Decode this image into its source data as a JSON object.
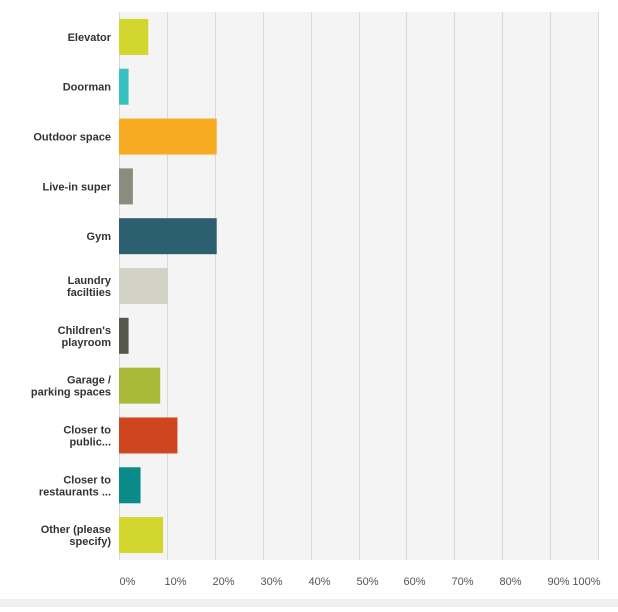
{
  "chart_data": {
    "type": "bar",
    "orientation": "horizontal",
    "categories": [
      [
        "Elevator"
      ],
      [
        "Doorman"
      ],
      [
        "Outdoor space"
      ],
      [
        "Live-in super"
      ],
      [
        "Gym"
      ],
      [
        "Laundry",
        "faciltiies"
      ],
      [
        "Children's",
        "playroom"
      ],
      [
        "Garage /",
        "parking spaces"
      ],
      [
        "Closer to",
        "public..."
      ],
      [
        "Closer to",
        "restaurants ..."
      ],
      [
        "Other (please",
        "specify)"
      ]
    ],
    "values": [
      6.1,
      2.0,
      20.4,
      2.9,
      20.4,
      10.2,
      2.0,
      8.6,
      12.2,
      4.5,
      9.2
    ],
    "colors": [
      "#d3d62f",
      "#37c0c0",
      "#f6ab20",
      "#8c8c7e",
      "#2c5f6f",
      "#d2d2c6",
      "#58574d",
      "#a9ba38",
      "#ce4620",
      "#0b8a8a",
      "#d3d62f"
    ],
    "xlim": [
      0,
      100
    ],
    "xticks": [
      "0%",
      "10%",
      "20%",
      "30%",
      "40%",
      "50%",
      "60%",
      "70%",
      "80%",
      "90%",
      "100%"
    ],
    "xlabel": "",
    "ylabel": "",
    "grid": "vertical",
    "legend": "none"
  }
}
